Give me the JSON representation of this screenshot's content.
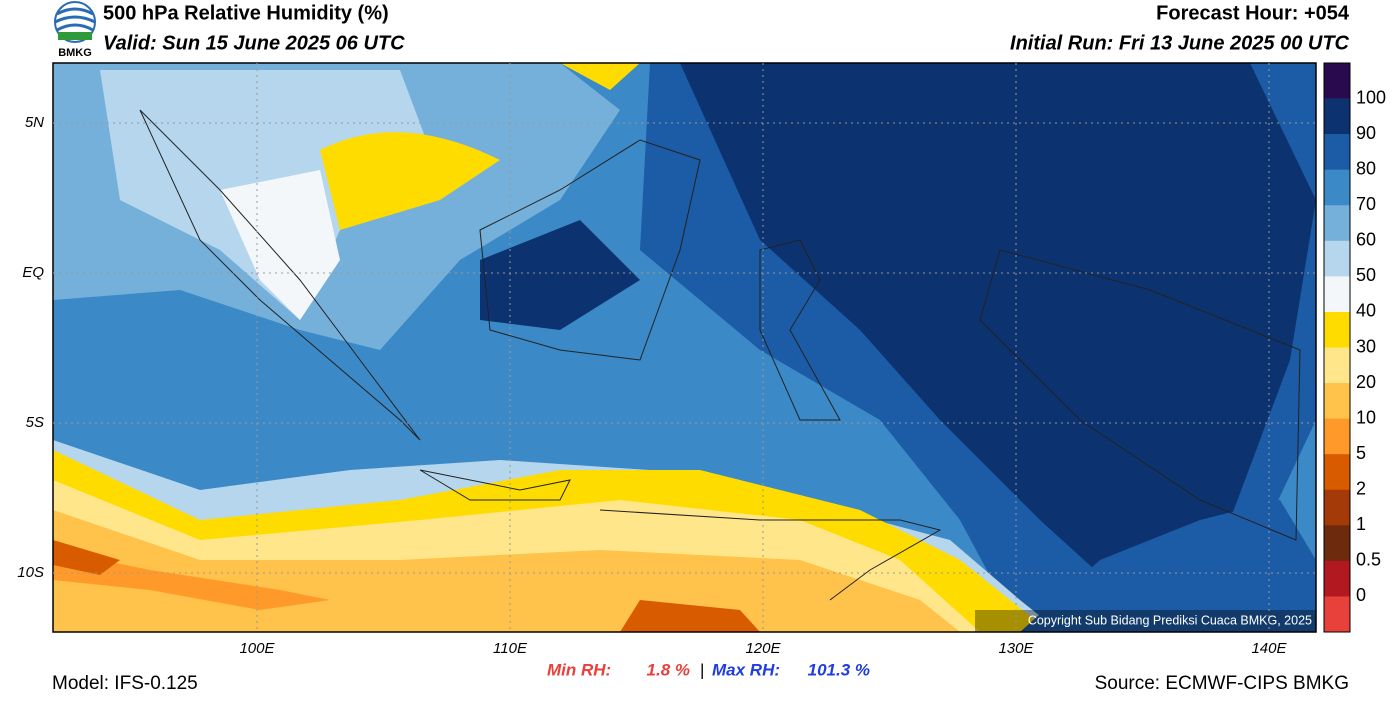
{
  "header": {
    "title": "500 hPa Relative Humidity (%)",
    "valid": "Valid: Sun 15 June 2025 06 UTC",
    "forecast_hour": "Forecast Hour: +054",
    "initial_run": "Initial Run: Fri 13 June 2025 00 UTC",
    "logo_text": "BMKG"
  },
  "map": {
    "lat_labels": [
      "5N",
      "EQ",
      "5S",
      "10S"
    ],
    "lon_labels": [
      "100E",
      "110E",
      "120E",
      "130E",
      "140E"
    ],
    "copyright": "Copyright Sub Bidang Prediksi Cuaca BMKG, 2025"
  },
  "colorbar": {
    "labels": [
      "100",
      "90",
      "80",
      "70",
      "60",
      "50",
      "40",
      "30",
      "20",
      "10",
      "5",
      "2",
      "1",
      "0.5",
      "0"
    ],
    "colors": [
      "#2a0a4e",
      "#0c3370",
      "#1c5ba6",
      "#3b89c6",
      "#74b0da",
      "#b5d6ec",
      "#f4f7fa",
      "#ffdc00",
      "#ffe68a",
      "#ffc24a",
      "#ff9a2a",
      "#d95b00",
      "#a33a08",
      "#6e2a0c",
      "#b11820",
      "#e8403a"
    ]
  },
  "footer": {
    "model": "Model: IFS-0.125",
    "min_rh_label": "Min RH:",
    "min_rh": "1.8 %",
    "separator": "|",
    "max_rh_label": "Max RH:",
    "max_rh": "101.3 %",
    "source": "Source: ECMWF-CIPS BMKG"
  }
}
